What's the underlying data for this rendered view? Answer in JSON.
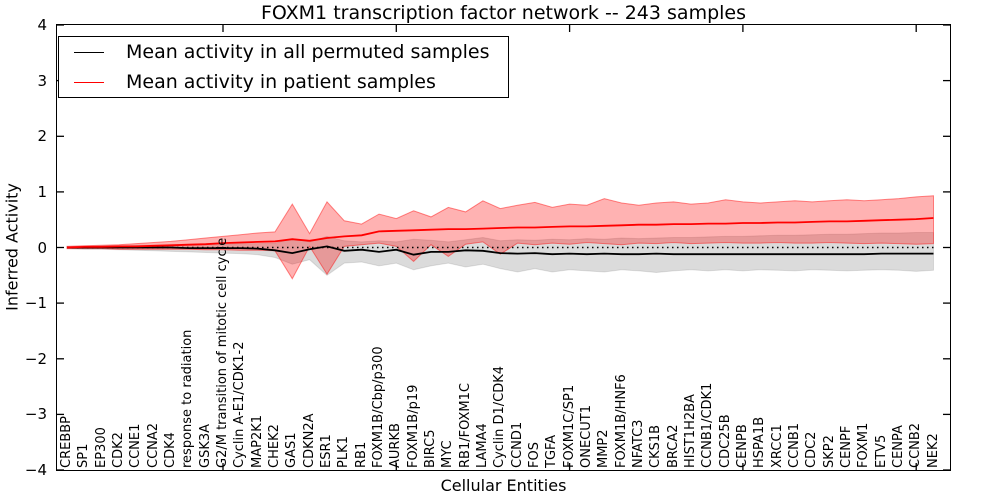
{
  "title": "FOXM1 transcription factor network -- 243 samples",
  "xlabel": "Cellular Entities",
  "ylabel": "Inferred Activity",
  "y_ticks": [
    "4",
    "3",
    "2",
    "1",
    "0",
    "−1",
    "−2",
    "−3",
    "−4"
  ],
  "legend": [
    {
      "label": "Mean activity in all permuted samples",
      "color": "#000000"
    },
    {
      "label": "Mean activity in patient samples",
      "color": "#ff0000"
    }
  ],
  "chart_data": {
    "type": "line",
    "title": "FOXM1 transcription factor network -- 243 samples",
    "xlabel": "Cellular Entities",
    "ylabel": "Inferred Activity",
    "ylim": [
      -4,
      4
    ],
    "y_tick_values": [
      4,
      3,
      2,
      1,
      0,
      -1,
      -2,
      -3,
      -4
    ],
    "x_major_tick_indices": [
      10,
      20,
      30,
      40,
      50
    ],
    "grid": false,
    "zero_line_style": "dotted",
    "legend_position": "upper left",
    "colors": {
      "patient": "#ff0000",
      "permuted": "#000000",
      "patient_band_fill": "rgba(255,0,0,0.30)",
      "permuted_band_fill": "rgba(0,0,0,0.14)"
    },
    "categories": [
      "CREBBP",
      "SP1",
      "EP300",
      "CDK2",
      "CCNE1",
      "CCNA2",
      "CDK4",
      "response to radiation",
      "GSK3A",
      "G2/M transition of mitotic cell cycle",
      "Cyclin A-E1/CDK1-2",
      "MAP2K1",
      "CHEK2",
      "GAS1",
      "CDKN2A",
      "ESR1",
      "PLK1",
      "RB1",
      "FOXM1B/Cbp/p300",
      "AURKB",
      "FOXM1B/p19",
      "BIRC5",
      "MYC",
      "RB1/FOXM1C",
      "LAMA4",
      "Cyclin D1/CDK4",
      "CCND1",
      "FOS",
      "TGFA",
      "FOXM1C/SP1",
      "ONECUT1",
      "MMP2",
      "FOXM1B/HNF6",
      "NFATC3",
      "CKS1B",
      "BRCA2",
      "HIST1H2BA",
      "CCNB1/CDK1",
      "CDC25B",
      "CENPB",
      "HSPA1B",
      "XRCC1",
      "CCNB1",
      "CDC2",
      "SKP2",
      "CENPF",
      "FOXM1",
      "ETV5",
      "CENPA",
      "CCNB2",
      "NEK2"
    ],
    "series": [
      {
        "name": "Mean activity in patient samples",
        "role": "patient_mean",
        "color": "#ff0000",
        "values": [
          0.0,
          0.01,
          0.01,
          0.02,
          0.02,
          0.03,
          0.04,
          0.05,
          0.06,
          0.08,
          0.09,
          0.1,
          0.11,
          0.15,
          0.12,
          0.17,
          0.2,
          0.22,
          0.29,
          0.3,
          0.31,
          0.32,
          0.33,
          0.33,
          0.34,
          0.35,
          0.36,
          0.36,
          0.37,
          0.38,
          0.38,
          0.39,
          0.4,
          0.41,
          0.41,
          0.42,
          0.42,
          0.43,
          0.43,
          0.44,
          0.44,
          0.45,
          0.45,
          0.46,
          0.47,
          0.47,
          0.48,
          0.49,
          0.5,
          0.51,
          0.53
        ]
      },
      {
        "name": "Patient band upper",
        "role": "patient_upper",
        "values": [
          0.02,
          0.03,
          0.04,
          0.05,
          0.07,
          0.09,
          0.11,
          0.14,
          0.17,
          0.2,
          0.23,
          0.26,
          0.28,
          0.78,
          0.25,
          0.82,
          0.48,
          0.42,
          0.6,
          0.52,
          0.66,
          0.55,
          0.72,
          0.64,
          0.84,
          0.7,
          0.76,
          0.81,
          0.72,
          0.78,
          0.76,
          0.88,
          0.8,
          0.76,
          0.8,
          0.82,
          0.78,
          0.8,
          0.86,
          0.82,
          0.8,
          0.82,
          0.84,
          0.82,
          0.84,
          0.86,
          0.84,
          0.86,
          0.88,
          0.91,
          0.93
        ]
      },
      {
        "name": "Patient band lower",
        "role": "patient_lower",
        "values": [
          -0.02,
          -0.02,
          -0.02,
          -0.03,
          -0.03,
          -0.03,
          -0.03,
          -0.03,
          -0.04,
          -0.04,
          -0.05,
          -0.05,
          -0.06,
          -0.56,
          0.02,
          -0.48,
          0.02,
          0.05,
          0.08,
          0.02,
          -0.25,
          0.05,
          -0.16,
          0.06,
          0.1,
          -0.12,
          0.08,
          0.05,
          0.08,
          0.06,
          0.09,
          0.07,
          0.05,
          0.08,
          0.07,
          0.09,
          0.07,
          0.08,
          0.09,
          0.08,
          0.08,
          0.09,
          0.08,
          0.08,
          0.09,
          0.08,
          0.07,
          0.08,
          0.07,
          0.06,
          0.07
        ]
      },
      {
        "name": "Mean activity in all permuted samples",
        "role": "permuted_mean",
        "color": "#000000",
        "values": [
          0.0,
          0.0,
          0.0,
          0.0,
          0.0,
          0.0,
          0.0,
          -0.01,
          -0.01,
          -0.01,
          -0.01,
          -0.02,
          -0.05,
          -0.1,
          -0.03,
          0.02,
          -0.06,
          -0.04,
          -0.08,
          -0.04,
          -0.13,
          -0.08,
          -0.08,
          -0.05,
          -0.06,
          -0.1,
          -0.11,
          -0.1,
          -0.12,
          -0.11,
          -0.12,
          -0.11,
          -0.12,
          -0.12,
          -0.11,
          -0.12,
          -0.12,
          -0.12,
          -0.12,
          -0.12,
          -0.12,
          -0.12,
          -0.12,
          -0.12,
          -0.12,
          -0.12,
          -0.12,
          -0.11,
          -0.11,
          -0.11,
          -0.11
        ]
      },
      {
        "name": "Permuted band upper",
        "role": "permuted_upper",
        "values": [
          0.02,
          0.02,
          0.03,
          0.03,
          0.04,
          0.04,
          0.05,
          0.05,
          0.06,
          0.06,
          0.07,
          0.07,
          0.08,
          0.16,
          0.1,
          0.2,
          0.12,
          0.1,
          0.12,
          0.1,
          0.15,
          0.13,
          0.1,
          0.14,
          0.18,
          0.12,
          0.14,
          0.13,
          0.15,
          0.14,
          0.16,
          0.15,
          0.17,
          0.16,
          0.17,
          0.18,
          0.18,
          0.19,
          0.2,
          0.2,
          0.21,
          0.22,
          0.22,
          0.23,
          0.24,
          0.24,
          0.25,
          0.26,
          0.26,
          0.27,
          0.27
        ]
      },
      {
        "name": "Permuted band lower",
        "role": "permuted_lower",
        "values": [
          -0.02,
          -0.03,
          -0.03,
          -0.04,
          -0.05,
          -0.06,
          -0.07,
          -0.08,
          -0.09,
          -0.1,
          -0.11,
          -0.13,
          -0.18,
          -0.3,
          -0.22,
          -0.5,
          -0.28,
          -0.26,
          -0.33,
          -0.28,
          -0.4,
          -0.33,
          -0.28,
          -0.35,
          -0.3,
          -0.38,
          -0.44,
          -0.38,
          -0.44,
          -0.4,
          -0.42,
          -0.44,
          -0.4,
          -0.42,
          -0.45,
          -0.42,
          -0.4,
          -0.42,
          -0.4,
          -0.42,
          -0.4,
          -0.41,
          -0.42,
          -0.4,
          -0.41,
          -0.42,
          -0.41,
          -0.4,
          -0.41,
          -0.43,
          -0.41
        ]
      }
    ]
  }
}
